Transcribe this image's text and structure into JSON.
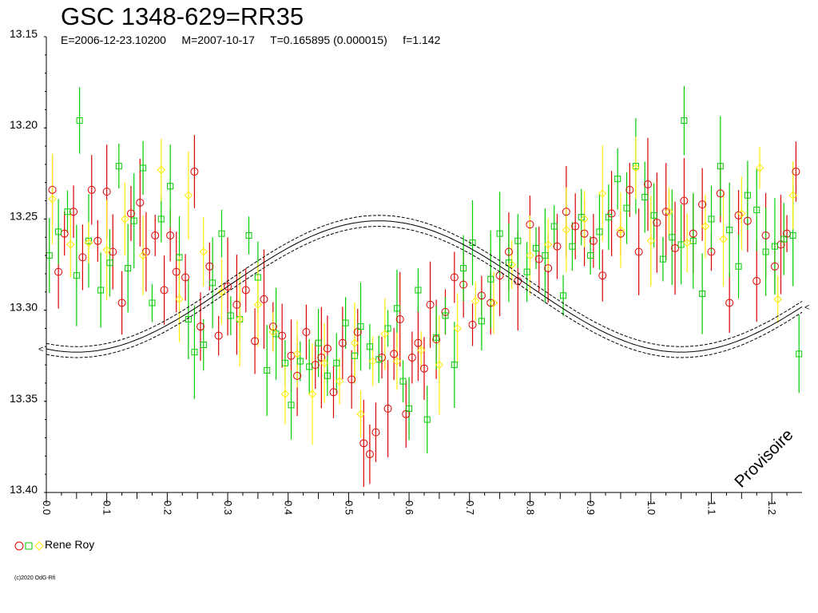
{
  "chart_data": {
    "type": "scatter",
    "title": "GSC 1348-629=RR35",
    "subtitle": {
      "epoch": "E=2006-12-23.10200",
      "mean_date": "M=2007-10-17",
      "period": "T=0.165895 (0.000015)",
      "f": "f=1.142"
    },
    "xlabel": "",
    "ylabel": "",
    "xlim": [
      0.0,
      1.25
    ],
    "ylim": [
      13.15,
      13.4
    ],
    "y_inverted": true,
    "grid": false,
    "y_ticks": [
      "13.15",
      "13.20",
      "13.25",
      "13.30",
      "13.35",
      "13.40"
    ],
    "x_ticks": [
      "0.0",
      "0.1",
      "0.2",
      "0.3",
      "0.4",
      "0.5",
      "0.6",
      "0.7",
      "0.8",
      "0.9",
      "1.0",
      "1.1",
      "1.2"
    ],
    "watermark": "Provisoire",
    "legend": {
      "label": "Rene Roy",
      "placement": "bottom-left"
    },
    "fit_curve": {
      "mean_mag": 13.287,
      "amplitude": 0.036,
      "min_phase": 0.55,
      "band": 0.003
    },
    "series": [
      {
        "marker": "circle",
        "color": "#dd0000",
        "points": [
          [
            0.01,
            13.234
          ],
          [
            0.02,
            13.279
          ],
          [
            0.03,
            13.258
          ],
          [
            0.045,
            13.246
          ],
          [
            0.06,
            13.271
          ],
          [
            0.075,
            13.234
          ],
          [
            0.085,
            13.262
          ],
          [
            0.1,
            13.235
          ],
          [
            0.11,
            13.268
          ],
          [
            0.125,
            13.296
          ],
          [
            0.14,
            13.247
          ],
          [
            0.155,
            13.241
          ],
          [
            0.165,
            13.268
          ],
          [
            0.18,
            13.259
          ],
          [
            0.195,
            13.289
          ],
          [
            0.205,
            13.259
          ],
          [
            0.215,
            13.279
          ],
          [
            0.23,
            13.282
          ],
          [
            0.245,
            13.224
          ],
          [
            0.255,
            13.309
          ],
          [
            0.27,
            13.276
          ],
          [
            0.285,
            13.314
          ],
          [
            0.3,
            13.287
          ],
          [
            0.315,
            13.297
          ],
          [
            0.33,
            13.289
          ],
          [
            0.345,
            13.317
          ],
          [
            0.36,
            13.294
          ],
          [
            0.375,
            13.309
          ],
          [
            0.39,
            13.314
          ],
          [
            0.405,
            13.325
          ],
          [
            0.415,
            13.336
          ],
          [
            0.43,
            13.312
          ],
          [
            0.445,
            13.33
          ],
          [
            0.455,
            13.326
          ],
          [
            0.465,
            13.321
          ],
          [
            0.475,
            13.345
          ],
          [
            0.49,
            13.318
          ],
          [
            0.505,
            13.338
          ],
          [
            0.515,
            13.312
          ],
          [
            0.525,
            13.373
          ],
          [
            0.535,
            13.379
          ],
          [
            0.545,
            13.367
          ],
          [
            0.555,
            13.326
          ],
          [
            0.565,
            13.354
          ],
          [
            0.575,
            13.324
          ],
          [
            0.585,
            13.305
          ],
          [
            0.595,
            13.357
          ],
          [
            0.605,
            13.326
          ],
          [
            0.615,
            13.318
          ],
          [
            0.625,
            13.332
          ],
          [
            0.635,
            13.297
          ],
          [
            0.645,
            13.316
          ],
          [
            0.66,
            13.301
          ],
          [
            0.675,
            13.282
          ],
          [
            0.69,
            13.286
          ],
          [
            0.705,
            13.308
          ],
          [
            0.72,
            13.292
          ],
          [
            0.735,
            13.296
          ],
          [
            0.75,
            13.281
          ],
          [
            0.765,
            13.268
          ],
          [
            0.78,
            13.284
          ],
          [
            0.8,
            13.253
          ],
          [
            0.815,
            13.272
          ],
          [
            0.83,
            13.277
          ],
          [
            0.845,
            13.265
          ],
          [
            0.86,
            13.246
          ],
          [
            0.875,
            13.254
          ],
          [
            0.89,
            13.258
          ],
          [
            0.905,
            13.262
          ],
          [
            0.92,
            13.281
          ],
          [
            0.935,
            13.247
          ],
          [
            0.95,
            13.258
          ],
          [
            0.965,
            13.234
          ],
          [
            0.98,
            13.268
          ],
          [
            0.995,
            13.231
          ],
          [
            1.01,
            13.252
          ],
          [
            1.025,
            13.246
          ],
          [
            1.04,
            13.266
          ],
          [
            1.055,
            13.24
          ],
          [
            1.07,
            13.258
          ],
          [
            1.085,
            13.242
          ],
          [
            1.1,
            13.268
          ],
          [
            1.115,
            13.236
          ],
          [
            1.13,
            13.296
          ],
          [
            1.145,
            13.248
          ],
          [
            1.16,
            13.251
          ],
          [
            1.175,
            13.284
          ],
          [
            1.19,
            13.259
          ],
          [
            1.205,
            13.276
          ],
          [
            1.215,
            13.264
          ],
          [
            1.225,
            13.258
          ],
          [
            1.24,
            13.224
          ]
        ]
      },
      {
        "marker": "square",
        "color": "#00cc00",
        "points": [
          [
            0.005,
            13.27
          ],
          [
            0.02,
            13.257
          ],
          [
            0.035,
            13.246
          ],
          [
            0.05,
            13.281
          ],
          [
            0.055,
            13.196
          ],
          [
            0.07,
            13.262
          ],
          [
            0.09,
            13.289
          ],
          [
            0.105,
            13.274
          ],
          [
            0.12,
            13.221
          ],
          [
            0.135,
            13.277
          ],
          [
            0.145,
            13.251
          ],
          [
            0.16,
            13.222
          ],
          [
            0.175,
            13.296
          ],
          [
            0.19,
            13.25
          ],
          [
            0.205,
            13.232
          ],
          [
            0.22,
            13.271
          ],
          [
            0.235,
            13.305
          ],
          [
            0.245,
            13.323
          ],
          [
            0.26,
            13.319
          ],
          [
            0.275,
            13.285
          ],
          [
            0.29,
            13.258
          ],
          [
            0.305,
            13.303
          ],
          [
            0.32,
            13.305
          ],
          [
            0.335,
            13.259
          ],
          [
            0.35,
            13.282
          ],
          [
            0.365,
            13.333
          ],
          [
            0.38,
            13.313
          ],
          [
            0.395,
            13.329
          ],
          [
            0.405,
            13.352
          ],
          [
            0.42,
            13.328
          ],
          [
            0.435,
            13.331
          ],
          [
            0.45,
            13.318
          ],
          [
            0.465,
            13.336
          ],
          [
            0.48,
            13.329
          ],
          [
            0.495,
            13.307
          ],
          [
            0.51,
            13.325
          ],
          [
            0.52,
            13.309
          ],
          [
            0.535,
            13.32
          ],
          [
            0.55,
            13.327
          ],
          [
            0.565,
            13.31
          ],
          [
            0.58,
            13.299
          ],
          [
            0.59,
            13.339
          ],
          [
            0.6,
            13.354
          ],
          [
            0.615,
            13.289
          ],
          [
            0.63,
            13.36
          ],
          [
            0.645,
            13.315
          ],
          [
            0.66,
            13.303
          ],
          [
            0.675,
            13.33
          ],
          [
            0.69,
            13.277
          ],
          [
            0.705,
            13.263
          ],
          [
            0.72,
            13.306
          ],
          [
            0.735,
            13.283
          ],
          [
            0.75,
            13.258
          ],
          [
            0.765,
            13.274
          ],
          [
            0.78,
            13.262
          ],
          [
            0.795,
            13.279
          ],
          [
            0.81,
            13.266
          ],
          [
            0.825,
            13.27
          ],
          [
            0.84,
            13.254
          ],
          [
            0.855,
            13.292
          ],
          [
            0.87,
            13.265
          ],
          [
            0.885,
            13.249
          ],
          [
            0.9,
            13.27
          ],
          [
            0.915,
            13.257
          ],
          [
            0.93,
            13.249
          ],
          [
            0.945,
            13.228
          ],
          [
            0.96,
            13.244
          ],
          [
            0.975,
            13.221
          ],
          [
            0.99,
            13.238
          ],
          [
            1.005,
            13.248
          ],
          [
            1.02,
            13.272
          ],
          [
            1.035,
            13.26
          ],
          [
            1.05,
            13.264
          ],
          [
            1.055,
            13.196
          ],
          [
            1.07,
            13.262
          ],
          [
            1.085,
            13.291
          ],
          [
            1.1,
            13.25
          ],
          [
            1.115,
            13.221
          ],
          [
            1.13,
            13.256
          ],
          [
            1.145,
            13.276
          ],
          [
            1.16,
            13.237
          ],
          [
            1.175,
            13.245
          ],
          [
            1.19,
            13.268
          ],
          [
            1.205,
            13.265
          ],
          [
            1.22,
            13.261
          ],
          [
            1.235,
            13.259
          ],
          [
            1.245,
            13.324
          ]
        ]
      },
      {
        "marker": "diamond",
        "color": "#ffee00",
        "points": [
          [
            0.01,
            13.239
          ],
          [
            0.04,
            13.264
          ],
          [
            0.07,
            13.263
          ],
          [
            0.1,
            13.267
          ],
          [
            0.13,
            13.25
          ],
          [
            0.16,
            13.27
          ],
          [
            0.19,
            13.223
          ],
          [
            0.22,
            13.294
          ],
          [
            0.235,
            13.237
          ],
          [
            0.26,
            13.268
          ],
          [
            0.29,
            13.29
          ],
          [
            0.32,
            13.305
          ],
          [
            0.35,
            13.297
          ],
          [
            0.375,
            13.312
          ],
          [
            0.395,
            13.346
          ],
          [
            0.415,
            13.324
          ],
          [
            0.44,
            13.346
          ],
          [
            0.46,
            13.329
          ],
          [
            0.485,
            13.339
          ],
          [
            0.51,
            13.318
          ],
          [
            0.52,
            13.357
          ],
          [
            0.54,
            13.328
          ],
          [
            0.56,
            13.313
          ],
          [
            0.58,
            13.328
          ],
          [
            0.62,
            13.322
          ],
          [
            0.65,
            13.33
          ],
          [
            0.68,
            13.31
          ],
          [
            0.71,
            13.295
          ],
          [
            0.74,
            13.296
          ],
          [
            0.77,
            13.275
          ],
          [
            0.8,
            13.27
          ],
          [
            0.83,
            13.264
          ],
          [
            0.86,
            13.256
          ],
          [
            0.89,
            13.25
          ],
          [
            0.92,
            13.236
          ],
          [
            0.95,
            13.256
          ],
          [
            0.975,
            13.222
          ],
          [
            1.0,
            13.262
          ],
          [
            1.03,
            13.246
          ],
          [
            1.06,
            13.263
          ],
          [
            1.09,
            13.254
          ],
          [
            1.12,
            13.261
          ],
          [
            1.15,
            13.247
          ],
          [
            1.18,
            13.222
          ],
          [
            1.21,
            13.294
          ],
          [
            1.235,
            13.237
          ]
        ]
      }
    ]
  },
  "legend": {
    "label": "Rene Roy"
  },
  "footer": {
    "copyright": "(c)2020 OdG-Rfi"
  }
}
